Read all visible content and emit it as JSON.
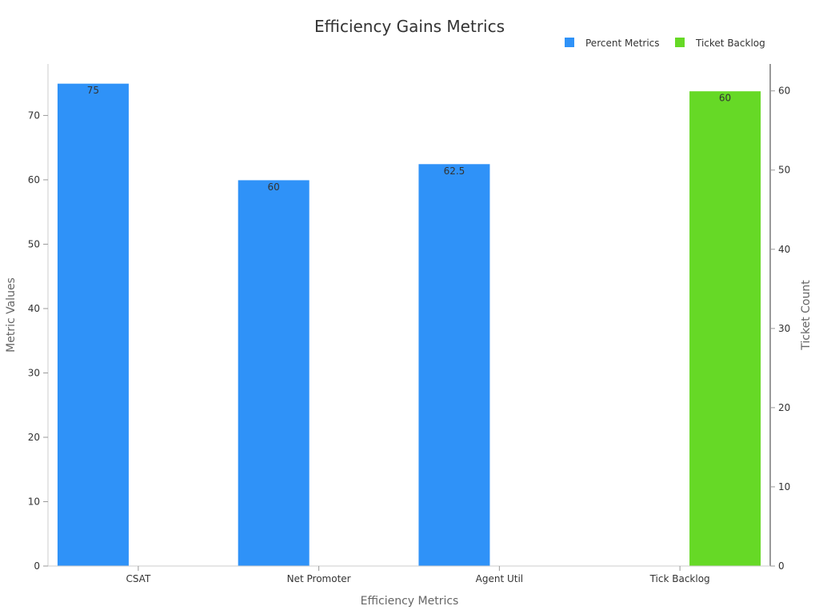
{
  "chart_data": {
    "type": "bar",
    "title": "Efficiency Gains Metrics",
    "xlabel": "Efficiency Metrics",
    "ylabel": "Metric Values",
    "y2label": "Ticket Count",
    "categories": [
      "CSAT",
      "Net Promoter",
      "Agent Util",
      "Tick Backlog"
    ],
    "series": [
      {
        "name": "Percent Metrics",
        "axis": "left",
        "color": "#2f92f8",
        "values": [
          75,
          60,
          62.5,
          null
        ],
        "labels": [
          "75",
          "60",
          "62.5",
          ""
        ]
      },
      {
        "name": "Ticket Backlog",
        "axis": "right",
        "color": "#66d926",
        "values": [
          null,
          null,
          null,
          60
        ],
        "labels": [
          "",
          "",
          "",
          "60"
        ]
      }
    ],
    "ylim": [
      0,
      78
    ],
    "y2lim": [
      0,
      63.4
    ],
    "yticks": [
      0,
      10,
      20,
      30,
      40,
      50,
      60,
      70
    ],
    "y2ticks": [
      0,
      10,
      20,
      30,
      40,
      50,
      60
    ],
    "grid": false,
    "legend": "top-right"
  }
}
